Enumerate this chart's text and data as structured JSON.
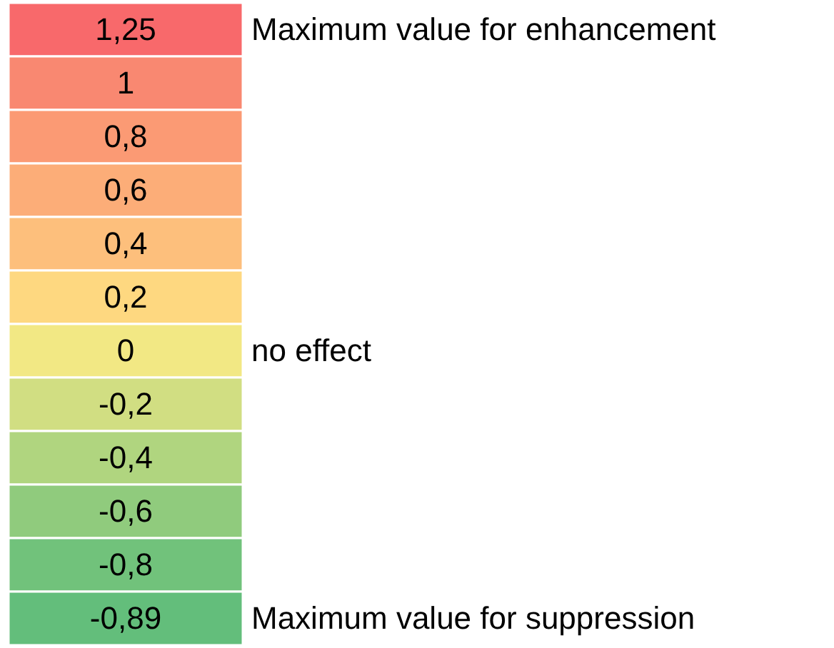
{
  "chart_data": {
    "type": "heatmap",
    "categories": [
      null
    ],
    "y_categories": [
      null,
      null,
      null,
      null,
      null,
      null,
      null,
      null,
      null,
      null,
      null,
      null
    ],
    "y2_categories": [
      "Maximum value for enhancement",
      null,
      null,
      null,
      null,
      null,
      "no effect",
      null,
      null,
      null,
      null,
      "Maximum value for suppression"
    ],
    "cells": [
      [
        1.25
      ],
      [
        1
      ],
      [
        0.8
      ],
      [
        0.6
      ],
      [
        0.4
      ],
      [
        0.2
      ],
      [
        0
      ],
      [
        -0.2
      ],
      [
        -0.4
      ],
      [
        -0.6
      ],
      [
        -0.8
      ],
      [
        -0.89
      ]
    ],
    "cell_labels": [
      [
        "1,25"
      ],
      [
        "1"
      ],
      [
        "0,8"
      ],
      [
        "0,6"
      ],
      [
        "0,4"
      ],
      [
        "0,2"
      ],
      [
        "0"
      ],
      [
        "-0,2"
      ],
      [
        "-0,4"
      ],
      [
        "-0,6"
      ],
      [
        "-0,8"
      ],
      [
        "-0,89"
      ]
    ],
    "colors": [
      "#f8696b",
      "#f98370",
      "#fa9473",
      "#fca777",
      "#fdb87b",
      "#fecb7e",
      "#ffeb84",
      "#e0e383",
      "#bfd980",
      "#a0d07e",
      "#81c77c",
      "#63be7b"
    ]
  }
}
